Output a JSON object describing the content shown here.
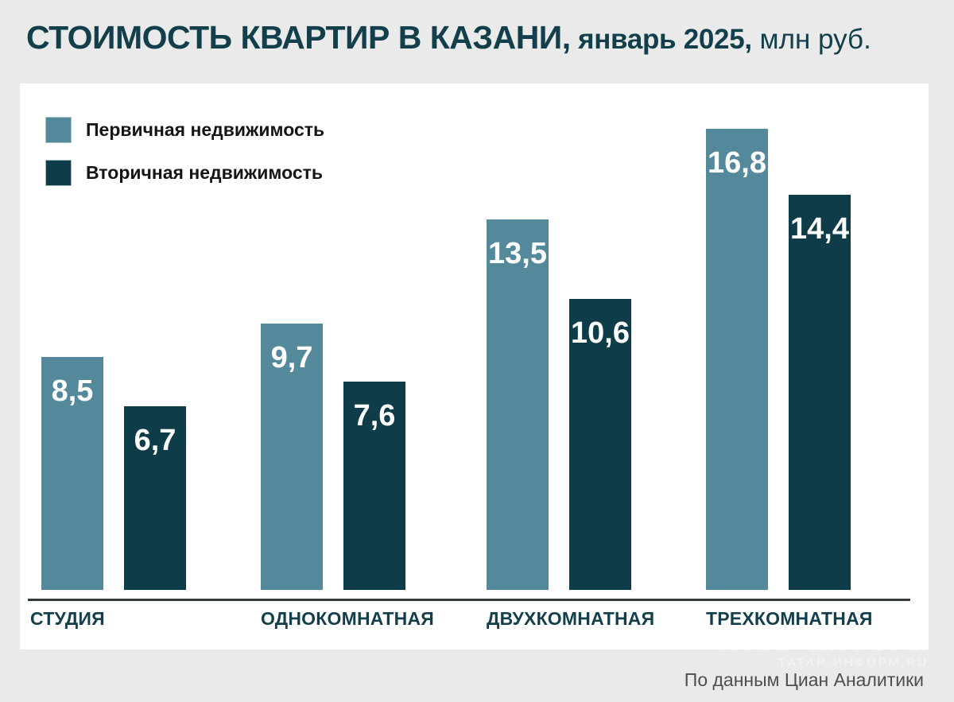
{
  "title": {
    "main": "СТОИМОСТЬ КВАРТИР В КАЗАНИ,",
    "period": " январь 2025,",
    "units": " млн руб."
  },
  "legend": {
    "items": [
      {
        "label": "Первичная недвижимость",
        "color": "#54899B"
      },
      {
        "label": "Вторичная недвижимость",
        "color": "#0E3C48"
      }
    ]
  },
  "chart_data": {
    "type": "bar",
    "title": "СТОИМОСТЬ КВАРТИР В КАЗАНИ, январь 2025, млн руб.",
    "categories": [
      "СТУДИЯ",
      "ОДНОКОМНАТНАЯ",
      "ДВУХКОМНАТНАЯ",
      "ТРЕХКОМНАТНАЯ"
    ],
    "series": [
      {
        "name": "Первичная недвижимость",
        "color": "#54899B",
        "values": [
          8.5,
          9.7,
          13.5,
          16.8
        ]
      },
      {
        "name": "Вторичная недвижимость",
        "color": "#0E3C48",
        "values": [
          6.7,
          7.6,
          10.6,
          14.4
        ]
      }
    ],
    "units": "млн руб.",
    "decimal_separator": ",",
    "ylim": [
      0,
      18.5
    ],
    "grid": false,
    "value_labels": "inside-top",
    "legend_position": "top-left"
  },
  "footer": {
    "source": "По данным Циан Аналитики"
  },
  "watermark": {
    "line1": "ТАТАР-ИНФОРМ",
    "line2": "ТАТАР-ИНФОРМ.RU"
  },
  "colors": {
    "background": "#E9EAE9",
    "panel": "#FFFFFF",
    "title_text": "#123F4B",
    "category_text": "#123F4B",
    "axis_line": "#343B3E",
    "value_text": "#FFFFFF",
    "footer_text": "#4E4E4E"
  }
}
